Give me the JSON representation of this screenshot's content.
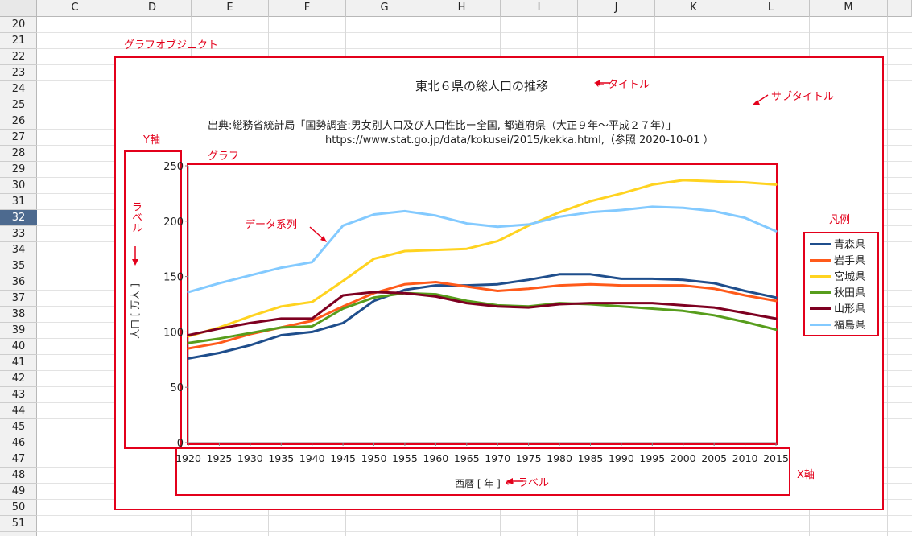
{
  "spreadsheet": {
    "columns": [
      "C",
      "D",
      "E",
      "F",
      "G",
      "H",
      "I",
      "J",
      "K",
      "L",
      "M"
    ],
    "rows": [
      "20",
      "21",
      "22",
      "23",
      "24",
      "25",
      "26",
      "27",
      "28",
      "29",
      "30",
      "31",
      "32",
      "33",
      "34",
      "35",
      "36",
      "37",
      "38",
      "39",
      "40",
      "41",
      "42",
      "43",
      "44",
      "45",
      "46",
      "47",
      "48",
      "49",
      "50",
      "51"
    ],
    "active_row": "32"
  },
  "annotations": {
    "graph_object": "グラフオブジェクト",
    "title_label": "← タイトル",
    "subtitle_label": "サブタイトル",
    "y_axis_label": "Y軸",
    "graph_label": "グラフ",
    "label_vertical": "ラベル",
    "data_series_label": "データ系列",
    "legend_label": "凡例",
    "x_axis_label": "X軸",
    "x_label_arrow": "← ラベル"
  },
  "chart_data": {
    "type": "line",
    "title": "東北６県の総人口の推移",
    "subtitle_line1": "出典:総務省統計局「国勢調査:男女別人口及び人口性比ー全国, 都道府県（大正９年～平成２７年）」",
    "subtitle_line2": "https://www.stat.go.jp/data/kokusei/2015/kekka.html,（参照  2020-10-01 ）",
    "xlabel": "西暦 [ 年 ]",
    "ylabel": "人口 [ 万人 ]",
    "ylim": [
      0,
      250
    ],
    "yticks": [
      0,
      50,
      100,
      150,
      200,
      250
    ],
    "x": [
      1920,
      1925,
      1930,
      1935,
      1940,
      1945,
      1950,
      1955,
      1960,
      1965,
      1970,
      1975,
      1980,
      1985,
      1990,
      1995,
      2000,
      2005,
      2010,
      2015
    ],
    "grid": false,
    "legend_position": "right",
    "series": [
      {
        "name": "青森県",
        "color": "#1f4e8c",
        "values": [
          76,
          81,
          88,
          97,
          100,
          108,
          128,
          138,
          142,
          142,
          143,
          147,
          152,
          152,
          148,
          148,
          147,
          144,
          137,
          131
        ]
      },
      {
        "name": "岩手県",
        "color": "#ff5a1a",
        "values": [
          85,
          90,
          98,
          104,
          110,
          123,
          135,
          143,
          145,
          141,
          137,
          139,
          142,
          143,
          142,
          142,
          142,
          139,
          133,
          128
        ]
      },
      {
        "name": "宮城県",
        "color": "#ffd320",
        "values": [
          96,
          104,
          114,
          123,
          127,
          146,
          166,
          173,
          174,
          175,
          182,
          196,
          208,
          218,
          225,
          233,
          237,
          236,
          235,
          233
        ]
      },
      {
        "name": "秋田県",
        "color": "#579d1c",
        "values": [
          90,
          94,
          99,
          104,
          105,
          121,
          131,
          135,
          134,
          128,
          124,
          123,
          126,
          125,
          123,
          121,
          119,
          115,
          109,
          102
        ]
      },
      {
        "name": "山形県",
        "color": "#7e0021",
        "values": [
          97,
          103,
          108,
          112,
          112,
          133,
          136,
          135,
          132,
          126,
          123,
          122,
          125,
          126,
          126,
          126,
          124,
          122,
          117,
          112
        ]
      },
      {
        "name": "福島県",
        "color": "#83caff",
        "values": [
          136,
          144,
          151,
          158,
          163,
          196,
          206,
          209,
          205,
          198,
          195,
          197,
          204,
          208,
          210,
          213,
          212,
          209,
          203,
          191
        ]
      }
    ]
  }
}
